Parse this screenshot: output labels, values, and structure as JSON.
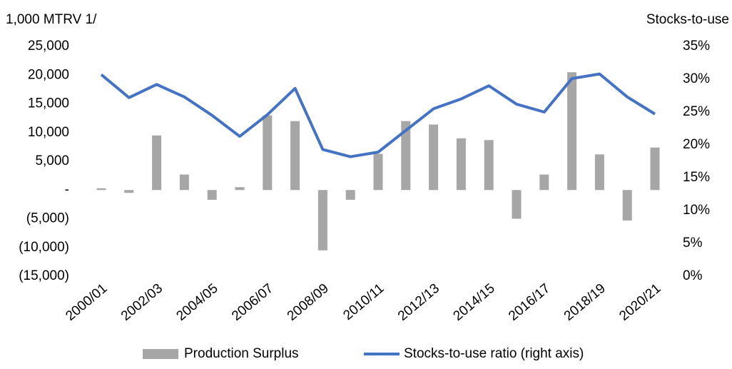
{
  "chart_data": {
    "type": "combo",
    "y_axis_label": "1,000 MTRV 1/",
    "y2_axis_label": "Stocks-to-use",
    "categories": [
      "2000/01",
      null,
      "2002/03",
      null,
      "2004/05",
      null,
      "2006/07",
      null,
      "2008/09",
      null,
      "2010/11",
      null,
      "2012/13",
      null,
      "2014/15",
      null,
      "2016/17",
      null,
      "2018/19",
      null,
      "2020/21"
    ],
    "series": [
      {
        "name": "Production Surplus",
        "type": "bar",
        "color": "#a6a6a6",
        "values": [
          300,
          -500,
          9500,
          2700,
          -1700,
          500,
          13000,
          12000,
          -10500,
          -1700,
          6300,
          12000,
          11400,
          9000,
          8700,
          -5000,
          2700,
          20500,
          6200,
          -5300,
          7400
        ]
      },
      {
        "name": "Stocks-to-use ratio (right axis)",
        "type": "line",
        "axis": "y2",
        "color": "#4472c4",
        "values": [
          30.7,
          27.2,
          29.2,
          27.3,
          24.5,
          21.3,
          24.6,
          28.6,
          19.3,
          18.2,
          18.9,
          22.2,
          25.5,
          27.0,
          29.0,
          26.2,
          25.0,
          30.1,
          30.8,
          27.3,
          24.7
        ]
      }
    ],
    "ylim": [
      -15000,
      25000
    ],
    "yticks": [
      {
        "value": -15000,
        "label": "(15,000)"
      },
      {
        "value": -10000,
        "label": "(10,000)"
      },
      {
        "value": -5000,
        "label": "(5,000)"
      },
      {
        "value": 0,
        "label": "-"
      },
      {
        "value": 5000,
        "label": "5,000"
      },
      {
        "value": 10000,
        "label": "10,000"
      },
      {
        "value": 15000,
        "label": "15,000"
      },
      {
        "value": 20000,
        "label": "20,000"
      },
      {
        "value": 25000,
        "label": "25,000"
      }
    ],
    "y2lim": [
      0,
      35
    ],
    "y2ticks": [
      {
        "value": 0,
        "label": "0%"
      },
      {
        "value": 5,
        "label": "5%"
      },
      {
        "value": 10,
        "label": "10%"
      },
      {
        "value": 15,
        "label": "15%"
      },
      {
        "value": 20,
        "label": "20%"
      },
      {
        "value": 25,
        "label": "25%"
      },
      {
        "value": 30,
        "label": "30%"
      },
      {
        "value": 35,
        "label": "35%"
      }
    ],
    "grid": false,
    "legend": "bottom"
  }
}
